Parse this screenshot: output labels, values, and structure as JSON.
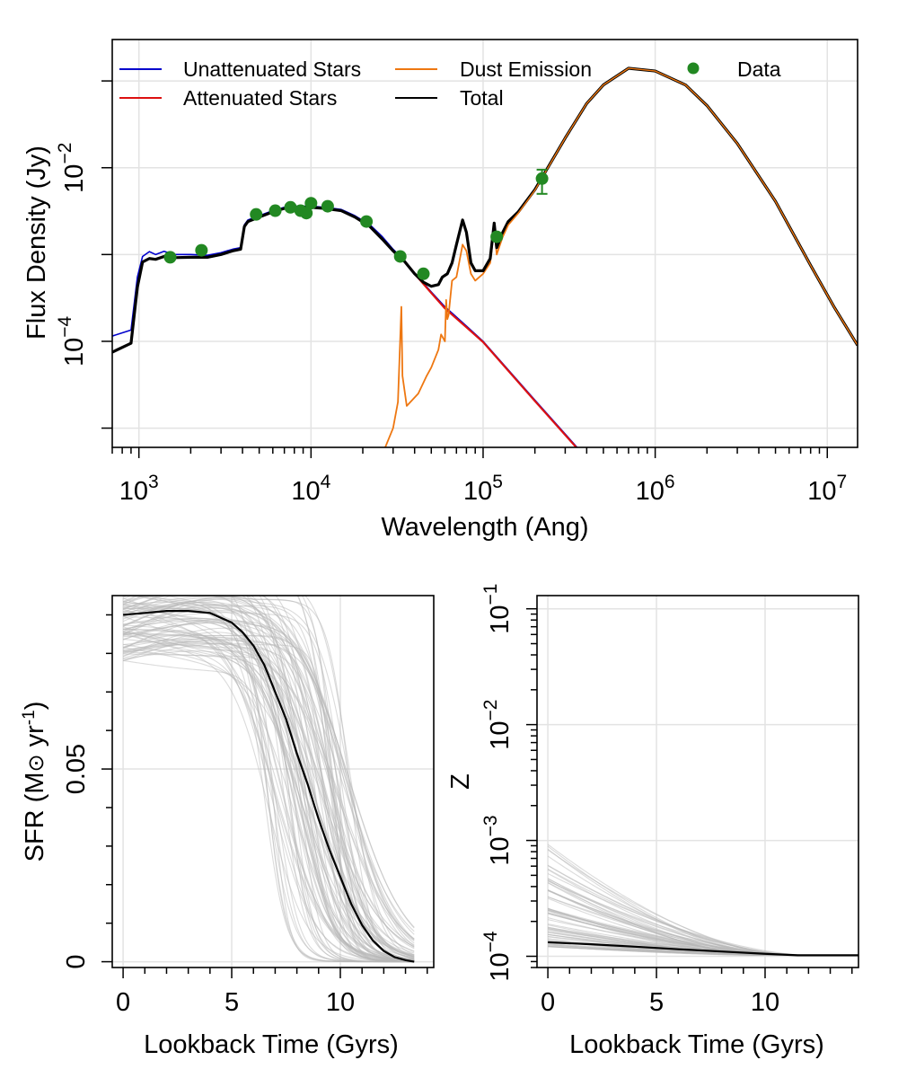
{
  "chart_data": [
    {
      "type": "line",
      "xlabel": "Wavelength (Ang)",
      "ylabel": "Flux Density (Jy)",
      "x_scale": "log",
      "y_scale": "log",
      "xlim": [
        700,
        15000000
      ],
      "ylim": [
        6e-06,
        0.3
      ],
      "grid": true,
      "x_tick_labels": [
        {
          "value": 1000,
          "base": "10",
          "exp": "3"
        },
        {
          "value": 10000,
          "base": "10",
          "exp": "4"
        },
        {
          "value": 100000,
          "base": "10",
          "exp": "5"
        },
        {
          "value": 1000000,
          "base": "10",
          "exp": "6"
        },
        {
          "value": 10000000,
          "base": "10",
          "exp": "7"
        }
      ],
      "y_tick_labels": [
        {
          "value": 0.0001,
          "base": "10",
          "exp": "−4"
        },
        {
          "value": 0.01,
          "base": "10",
          "exp": "−2"
        }
      ],
      "legend_position": "top",
      "series": [
        {
          "name": "Unattenuated Stars",
          "color": "#0000cc",
          "width": 1.6,
          "x": [
            700,
            900,
            980,
            1050,
            1150,
            1250,
            1400,
            1600,
            2000,
            2500,
            3000,
            3500,
            3900,
            4100,
            4300,
            5000,
            6000,
            7000,
            8000,
            9000,
            10000,
            12000,
            15000,
            18000,
            22000,
            26000,
            30000,
            35000,
            40000,
            50000,
            60000,
            80000,
            100000,
            200000,
            400000
          ],
          "y": [
            0.000115,
            0.000135,
            0.00055,
            0.00095,
            0.00108,
            0.001,
            0.00109,
            0.001,
            0.001,
            0.00098,
            0.00105,
            0.00115,
            0.0012,
            0.0022,
            0.0025,
            0.0028,
            0.0032,
            0.0035,
            0.0036,
            0.0036,
            0.0036,
            0.0035,
            0.0033,
            0.0028,
            0.0022,
            0.0016,
            0.00115,
            0.00085,
            0.00061,
            0.00037,
            0.00025,
            0.00015,
            0.0001,
            2.1e-05,
            4.5e-06
          ]
        },
        {
          "name": "Attenuated Stars",
          "color": "#dd1111",
          "width": 2.2,
          "x": [
            700,
            900,
            980,
            1050,
            1150,
            1250,
            1400,
            1600,
            2000,
            2500,
            3000,
            3500,
            3900,
            4100,
            4300,
            5000,
            6000,
            7000,
            8000,
            9000,
            10000,
            12000,
            15000,
            18000,
            22000,
            26000,
            30000,
            35000,
            40000,
            50000,
            60000,
            80000,
            100000,
            200000,
            400000
          ],
          "y": [
            7.5e-05,
            9.5e-05,
            0.00042,
            0.00082,
            0.0009,
            0.00088,
            0.00095,
            0.00092,
            0.00093,
            0.00093,
            0.001,
            0.0011,
            0.00115,
            0.0021,
            0.0024,
            0.0027,
            0.0031,
            0.0034,
            0.0035,
            0.0035,
            0.0035,
            0.0034,
            0.0032,
            0.0027,
            0.0021,
            0.0015,
            0.0011,
            0.00083,
            0.0006,
            0.00036,
            0.00024,
            0.000145,
            9.8e-05,
            2.05e-05,
            4.4e-06
          ]
        },
        {
          "name": "Dust Emission",
          "color": "#ee7711",
          "width": 1.8,
          "x": [
            26000,
            30000,
            32000,
            33500,
            34000,
            36000,
            42000,
            47000,
            50000,
            55000,
            57000,
            60000,
            61000,
            62000,
            63000,
            66000,
            70000,
            76000,
            80000,
            85000,
            90000,
            100000,
            110000,
            116000,
            120000,
            130000,
            140000,
            160000,
            200000,
            300000,
            400000,
            500000,
            700000,
            1000000,
            1500000,
            2000000,
            3000000,
            5000000,
            8000000,
            11000000,
            15000000
          ],
          "y": [
            5e-06,
            1e-05,
            2e-05,
            0.00025,
            4e-05,
            1.8e-05,
            2.5e-05,
            4e-05,
            5e-05,
            8e-05,
            0.00012,
            0.0001,
            0.0003,
            0.00018,
            0.0002,
            0.0005,
            0.00055,
            0.0013,
            0.0011,
            0.0006,
            0.0005,
            0.0006,
            0.0008,
            0.002,
            0.001,
            0.0016,
            0.0022,
            0.003,
            0.0055,
            0.022,
            0.055,
            0.09,
            0.14,
            0.13,
            0.09,
            0.052,
            0.019,
            0.0041,
            0.00075,
            0.000245,
            9e-05
          ]
        },
        {
          "name": "Total",
          "color": "#000000",
          "width": 3.2,
          "x": [
            700,
            900,
            980,
            1050,
            1150,
            1250,
            1400,
            1600,
            2000,
            2500,
            3000,
            3500,
            3900,
            4100,
            4300,
            5000,
            6000,
            7000,
            8000,
            9000,
            10000,
            12000,
            15000,
            18000,
            22000,
            26000,
            30000,
            35000,
            40000,
            45000,
            50000,
            55000,
            58000,
            62000,
            66000,
            70000,
            76000,
            80000,
            85000,
            90000,
            100000,
            110000,
            116000,
            120000,
            130000,
            140000,
            160000,
            200000,
            300000,
            400000,
            500000,
            700000,
            1000000,
            1500000,
            2000000,
            3000000,
            5000000,
            8000000,
            11000000,
            15000000
          ],
          "y": [
            7.5e-05,
            9.5e-05,
            0.00042,
            0.00082,
            0.0009,
            0.00088,
            0.00095,
            0.00092,
            0.00093,
            0.00093,
            0.001,
            0.0011,
            0.00115,
            0.0021,
            0.0024,
            0.0027,
            0.0031,
            0.0034,
            0.0035,
            0.0035,
            0.0035,
            0.0034,
            0.0032,
            0.0027,
            0.0021,
            0.0015,
            0.0011,
            0.00083,
            0.0006,
            0.00048,
            0.00043,
            0.00045,
            0.00055,
            0.0006,
            0.0008,
            0.0013,
            0.0025,
            0.0018,
            0.0008,
            0.00065,
            0.00065,
            0.0009,
            0.0023,
            0.0012,
            0.0018,
            0.0024,
            0.0031,
            0.0056,
            0.022,
            0.055,
            0.09,
            0.14,
            0.13,
            0.09,
            0.052,
            0.019,
            0.0041,
            0.00075,
            0.000245,
            9e-05
          ]
        },
        {
          "name": "Data",
          "color": "#228822",
          "marker": "point",
          "x": [
            1520,
            2310,
            4800,
            6200,
            7600,
            8700,
            9400,
            10000,
            12500,
            21000,
            33000,
            45000,
            120000,
            220000
          ],
          "y": [
            0.00093,
            0.00112,
            0.0029,
            0.0032,
            0.0035,
            0.0032,
            0.003,
            0.0039,
            0.0036,
            0.0024,
            0.00095,
            0.0006,
            0.0016,
            0.0075
          ],
          "yerr_low": [
            null,
            null,
            null,
            null,
            null,
            null,
            null,
            null,
            null,
            null,
            null,
            null,
            null,
            0.005
          ],
          "yerr_high": [
            null,
            null,
            null,
            null,
            null,
            null,
            null,
            null,
            null,
            null,
            null,
            null,
            null,
            0.0095
          ]
        }
      ]
    },
    {
      "type": "line",
      "xlabel": "Lookback Time (Gyrs)",
      "ylabel_parts": [
        "SFR (M",
        "⊙",
        " yr",
        "-1",
        ")"
      ],
      "xlim": [
        -0.5,
        14.3
      ],
      "ylim": [
        -0.0015,
        0.095
      ],
      "grid": true,
      "x_ticks": [
        0,
        5,
        10
      ],
      "x_tick_labels": [
        "0",
        "5",
        "10"
      ],
      "y_ticks": [
        0,
        0.05
      ],
      "y_tick_labels": [
        "0",
        "0.05"
      ],
      "sample_color": "#b8b8b8",
      "median": {
        "name": "median",
        "color": "#000000",
        "x": [
          0,
          1,
          2,
          3,
          4,
          5,
          5.5,
          6,
          6.5,
          7,
          7.5,
          8,
          8.5,
          9,
          9.5,
          10,
          10.5,
          11,
          11.5,
          12,
          12.5,
          13,
          13.4
        ],
        "y": [
          0.09,
          0.0905,
          0.091,
          0.091,
          0.0905,
          0.088,
          0.0855,
          0.082,
          0.077,
          0.07,
          0.063,
          0.054,
          0.046,
          0.037,
          0.029,
          0.022,
          0.015,
          0.0095,
          0.0055,
          0.0028,
          0.0012,
          0.0004,
          0
        ]
      },
      "samples": {
        "count": 90,
        "start_range": [
          0.078,
          0.098
        ],
        "growth_range": [
          -0.006,
          0.01
        ],
        "half_time_range": [
          6.5,
          10.6
        ],
        "width_range": [
          0.35,
          1.4
        ],
        "extra_half_times": [
          7.2,
          7.6,
          8.0
        ]
      }
    },
    {
      "type": "line",
      "xlabel": "Lookback Time (Gyrs)",
      "ylabel": "Z",
      "y_scale": "log",
      "xlim": [
        -0.5,
        14.3
      ],
      "ylim": [
        8e-05,
        0.13
      ],
      "grid": true,
      "x_ticks": [
        0,
        5,
        10
      ],
      "x_tick_labels": [
        "0",
        "5",
        "10"
      ],
      "y_tick_labels": [
        {
          "value": 0.0001,
          "base": "10",
          "exp": "−4"
        },
        {
          "value": 0.001,
          "base": "10",
          "exp": "−3"
        },
        {
          "value": 0.01,
          "base": "10",
          "exp": "−2"
        },
        {
          "value": 0.1,
          "base": "10",
          "exp": "−1"
        }
      ],
      "sample_color": "#b8b8b8",
      "median": {
        "name": "median",
        "color": "#000000",
        "x": [
          0,
          2,
          4,
          6,
          8,
          10,
          11.5,
          12,
          14.3
        ],
        "y": [
          0.000132,
          0.000127,
          0.000121,
          0.000115,
          0.00011,
          0.000105,
          0.000102,
          0.000102,
          0.000102
        ]
      },
      "samples": {
        "count": 70,
        "start_range": [
          0.00012,
          0.00095
        ],
        "floor": 0.000102,
        "end_range": [
          9.5,
          12
        ]
      }
    }
  ]
}
